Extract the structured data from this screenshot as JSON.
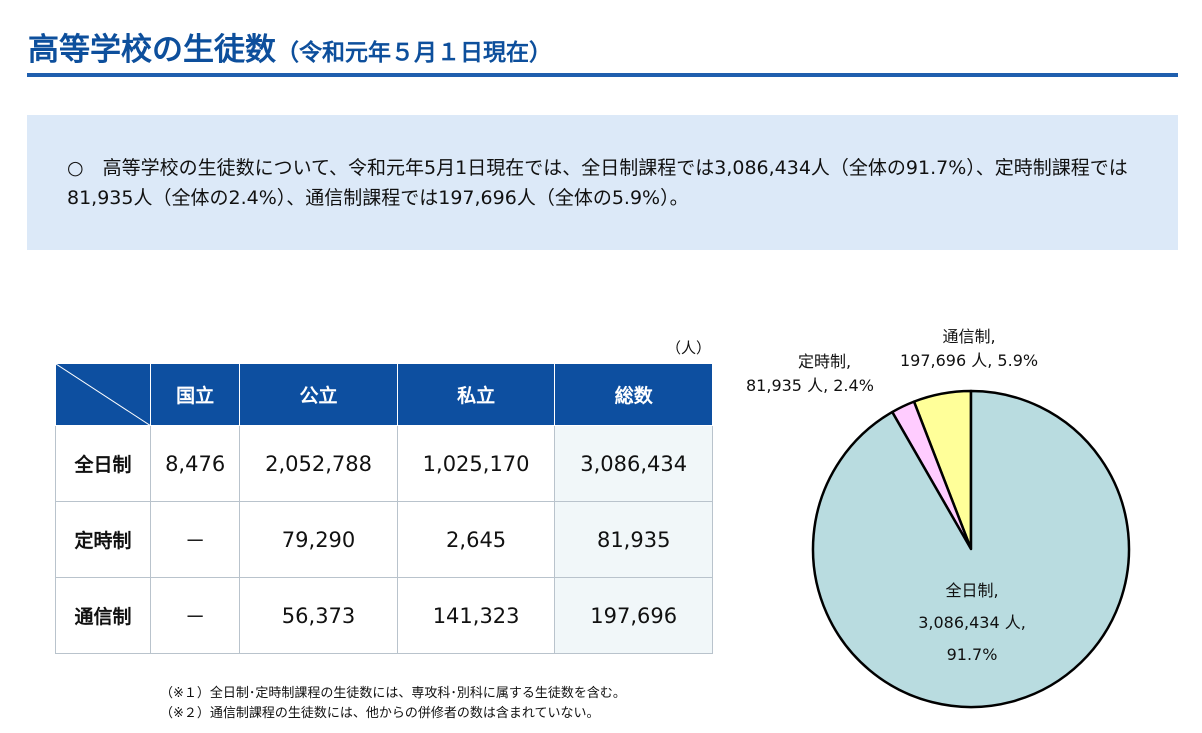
{
  "title": {
    "main": "高等学校の生徒数",
    "sub": "（令和元年５月１日現在）"
  },
  "summary": "○　高等学校の生徒数について、令和元年5月1日現在では、全日制課程では3,086,434人（全体の91.7%）、定時制課程では81,935人（全体の2.4%）、通信制課程では197,696人（全体の5.9%）。",
  "table": {
    "unit": "（人）",
    "headers": [
      "国立",
      "公立",
      "私立",
      "総数"
    ],
    "rows": [
      {
        "label": "全日制",
        "values": [
          "8,476",
          "2,052,788",
          "1,025,170",
          "3,086,434"
        ]
      },
      {
        "label": "定時制",
        "values": [
          "－",
          "79,290",
          "2,645",
          "81,935"
        ]
      },
      {
        "label": "通信制",
        "values": [
          "－",
          "56,373",
          "141,323",
          "197,696"
        ]
      }
    ]
  },
  "notes": [
    "（※１）全日制･定時制課程の生徒数には、専攻科･別科に属する生徒数を含む。",
    "（※２）通信制課程の生徒数には、他からの併修者の数は含まれていない。"
  ],
  "chart_data": {
    "type": "pie",
    "title": "",
    "slices": [
      {
        "name": "通信制",
        "value": 197696,
        "percent": 5.9,
        "label_line1": "通信制,",
        "label_line2": "197,696 人, 5.9%",
        "color": "#ffff99"
      },
      {
        "name": "定時制",
        "value": 81935,
        "percent": 2.4,
        "label_line1": "定時制,",
        "label_line2": "81,935 人, 2.4%",
        "color": "#ffccff"
      },
      {
        "name": "全日制",
        "value": 3086434,
        "percent": 91.7,
        "label_line1": "全日制,",
        "label_line2": "3,086,434 人,",
        "label_line3": "91.7%",
        "color": "#b9dce0"
      }
    ],
    "start": "top",
    "direction": "counterclockwise"
  }
}
